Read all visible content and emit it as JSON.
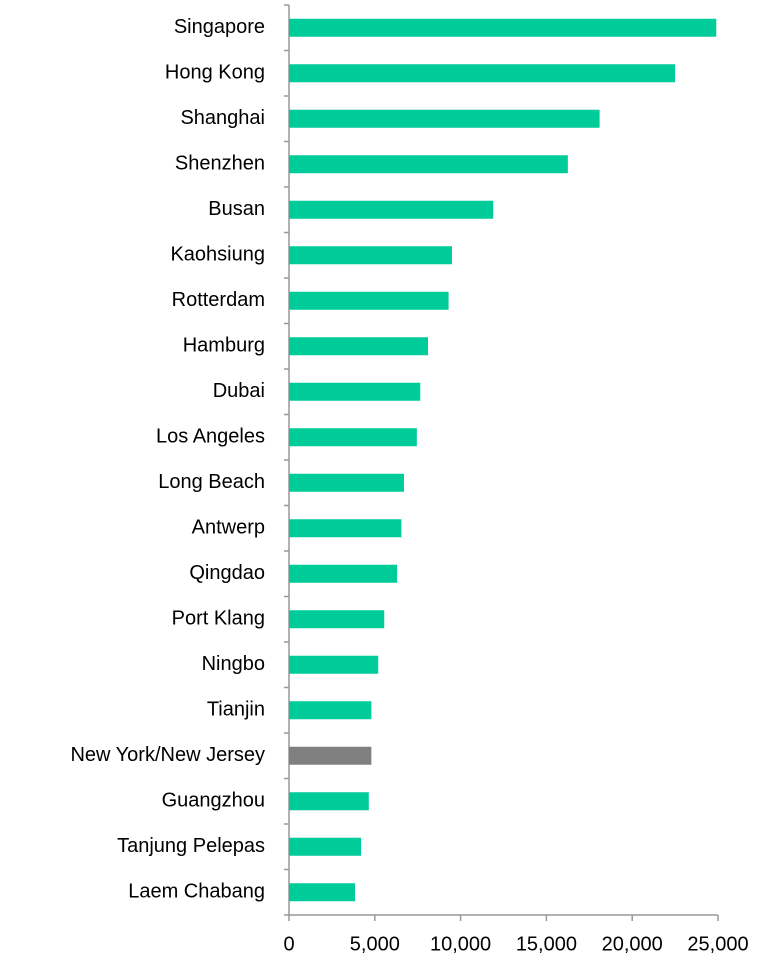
{
  "chart_data": {
    "type": "bar",
    "orientation": "horizontal",
    "categories": [
      "Singapore",
      "Hong Kong",
      "Shanghai",
      "Shenzhen",
      "Busan",
      "Kaohsiung",
      "Rotterdam",
      "Hamburg",
      "Dubai",
      "Los Angeles",
      "Long Beach",
      "Antwerp",
      "Qingdao",
      "Port Klang",
      "Ningbo",
      "Tianjin",
      "New York/New Jersey",
      "Guangzhou",
      "Tanjung Pelepas",
      "Laem Chabang"
    ],
    "values": [
      24900,
      22500,
      18100,
      16250,
      11900,
      9500,
      9300,
      8100,
      7650,
      7450,
      6700,
      6550,
      6300,
      5550,
      5200,
      4800,
      4800,
      4650,
      4200,
      3850
    ],
    "colors": [
      "#00cc99",
      "#00cc99",
      "#00cc99",
      "#00cc99",
      "#00cc99",
      "#00cc99",
      "#00cc99",
      "#00cc99",
      "#00cc99",
      "#00cc99",
      "#00cc99",
      "#00cc99",
      "#00cc99",
      "#00cc99",
      "#00cc99",
      "#00cc99",
      "#808080",
      "#00cc99",
      "#00cc99",
      "#00cc99"
    ],
    "xlim": [
      0,
      25000
    ],
    "xticks": [
      0,
      {
        "value": 5000,
        "label": "5,000"
      },
      {
        "value": 10000,
        "label": "10,000"
      },
      {
        "value": 15000,
        "label": "15,000"
      },
      {
        "value": 20000,
        "label": "20,000"
      },
      {
        "value": 25000,
        "label": "25,000"
      }
    ],
    "grid": false
  }
}
